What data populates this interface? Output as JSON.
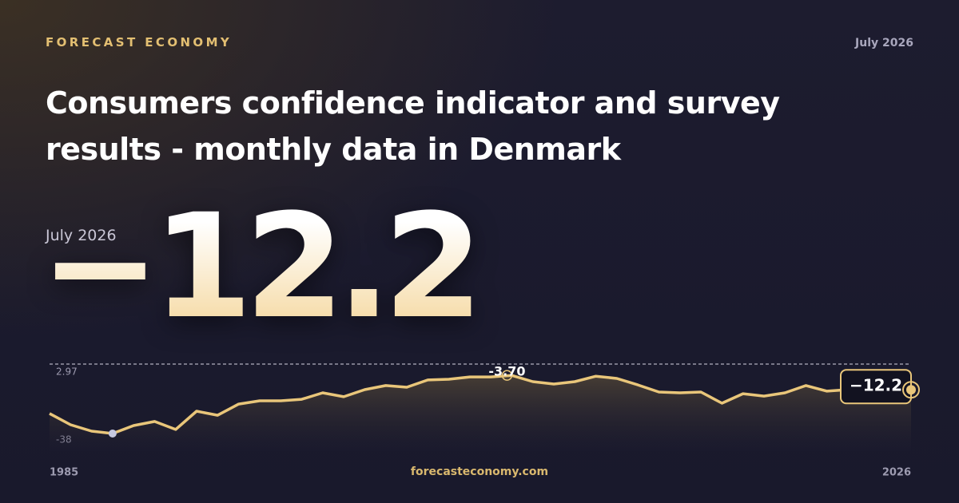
{
  "brand": "FORECAST ECONOMY",
  "date": "July 2026",
  "title_lines": [
    "Consumers confidence indicator and survey",
    "results - monthly data in Denmark"
  ],
  "footer": "forecasteconomy.com",
  "chart_data": {
    "type": "line",
    "x": [
      1985,
      1986,
      1987,
      1988,
      1989,
      1990,
      1991,
      1992,
      1993,
      1994,
      1995,
      1996,
      1997,
      1998,
      1999,
      2000,
      2001,
      2002,
      2003,
      2004,
      2005,
      2006,
      2007,
      2008,
      2009,
      2010,
      2011,
      2012,
      2013,
      2014,
      2015,
      2016,
      2017,
      2018,
      2019,
      2020,
      2021,
      2022,
      2023,
      2024,
      2025,
      2026
    ],
    "values": [
      -26.2,
      -32.8,
      -36.6,
      -38,
      -33.3,
      -30.9,
      -35.6,
      -24.8,
      -27.2,
      -20.6,
      -18.7,
      -18.7,
      -17.8,
      -14.0,
      -16.3,
      -12.1,
      -9.7,
      -10.7,
      -6.4,
      -6.0,
      -4.6,
      -4.6,
      -3.7,
      -7.4,
      -8.8,
      -7.4,
      -4.2,
      -5.5,
      -9.3,
      -13.5,
      -14.0,
      -13.5,
      -20.1,
      -14.5,
      -15.9,
      -14.0,
      -9.7,
      -13.0,
      -12.1,
      -12.1,
      -13.0,
      -12.2
    ],
    "value_labels": [
      null,
      null,
      null,
      null,
      null,
      null,
      null,
      null,
      null,
      null,
      null,
      null,
      null,
      null,
      null,
      null,
      null,
      null,
      null,
      null,
      null,
      null,
      "-3.70",
      null,
      null,
      null,
      null,
      null,
      null,
      null,
      null,
      null,
      null,
      null,
      null,
      null,
      null,
      null,
      null,
      null,
      null,
      "−12.2"
    ],
    "color": "#e9c67a",
    "xlim": [
      1985,
      2026
    ],
    "xticks": [
      1985,
      2026
    ],
    "ylim": [
      -38,
      2.97
    ],
    "yticks": [
      -38,
      2.97
    ]
  }
}
